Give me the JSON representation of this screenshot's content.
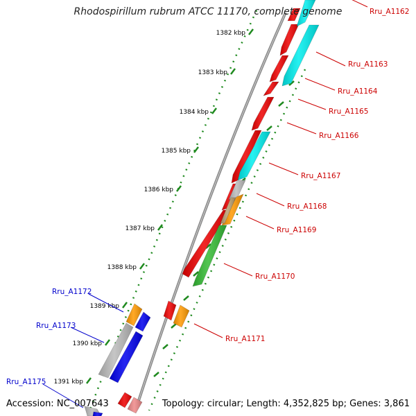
{
  "title": "Rhodospirillum rubrum ATCC 11170, complete genome",
  "footer": {
    "accession_label": "Accession:",
    "accession": "NC_007643",
    "topology": "Topology: circular; Length: 4,352,825 bp; Genes: 3,861"
  },
  "colors": {
    "backbone": "#8a8a8a",
    "tick": "#1f8a1f",
    "label_forward": "#cc0000",
    "label_reverse": "#0000cc",
    "red": "#ee0000",
    "cyan": "#00eeee",
    "orange": "#ff9900",
    "gray": "#bbbbbb",
    "tan": "#bba070",
    "green": "#33bb33",
    "blue": "#0000ee",
    "pink": "#ee8888"
  },
  "kbp_ticks": [
    {
      "kbp": 1382,
      "label": "1382 kbp"
    },
    {
      "kbp": 1383,
      "label": "1383 kbp"
    },
    {
      "kbp": 1384,
      "label": "1384 kbp"
    },
    {
      "kbp": 1385,
      "label": "1385 kbp"
    },
    {
      "kbp": 1386,
      "label": "1386 kbp"
    },
    {
      "kbp": 1387,
      "label": "1387 kbp"
    },
    {
      "kbp": 1388,
      "label": "1388 kbp"
    },
    {
      "kbp": 1389,
      "label": "1389 kbp"
    },
    {
      "kbp": 1390,
      "label": "1390 kbp"
    },
    {
      "kbp": 1391,
      "label": "1391 kbp"
    }
  ],
  "gene_labels": [
    {
      "name": "Rru_A1162",
      "strand": "forward"
    },
    {
      "name": "Rru_A1163",
      "strand": "forward"
    },
    {
      "name": "Rru_A1164",
      "strand": "forward"
    },
    {
      "name": "Rru_A1165",
      "strand": "forward"
    },
    {
      "name": "Rru_A1166",
      "strand": "forward"
    },
    {
      "name": "Rru_A1167",
      "strand": "forward"
    },
    {
      "name": "Rru_A1168",
      "strand": "forward"
    },
    {
      "name": "Rru_A1169",
      "strand": "forward"
    },
    {
      "name": "Rru_A1170",
      "strand": "forward"
    },
    {
      "name": "Rru_A1171",
      "strand": "forward"
    },
    {
      "name": "Rru_A1172",
      "strand": "reverse"
    },
    {
      "name": "Rru_A1173",
      "strand": "reverse"
    },
    {
      "name": "Rru_A1175",
      "strand": "reverse"
    }
  ]
}
